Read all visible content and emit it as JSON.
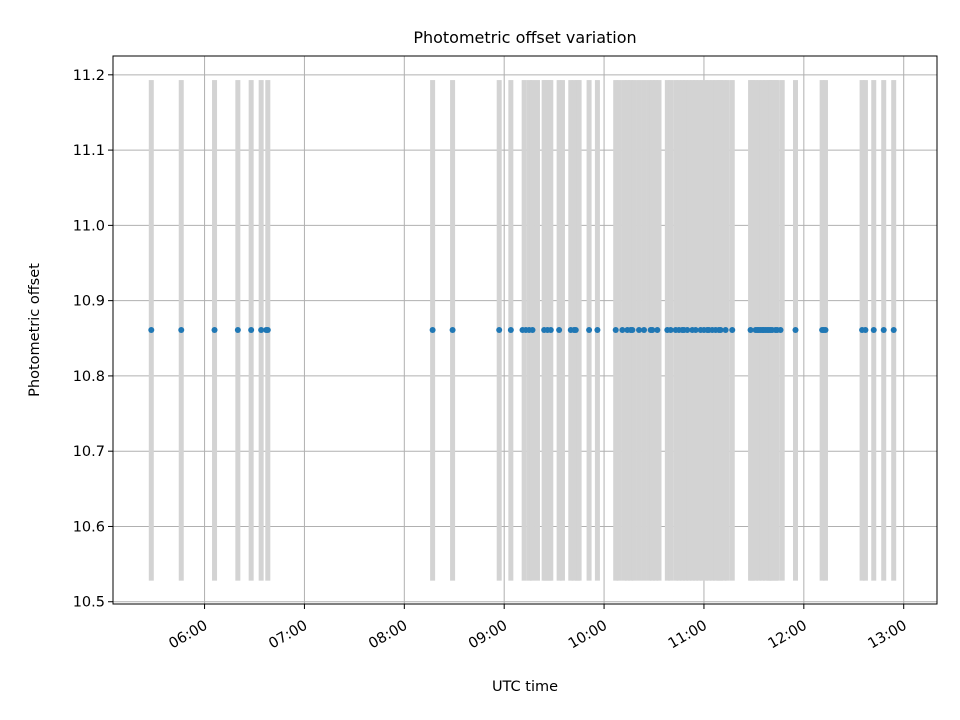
{
  "chart_data": {
    "type": "scatter",
    "title": "Photometric offset variation",
    "xlabel": "UTC time",
    "ylabel": "Photometric offset",
    "ylim": [
      10.497,
      11.225
    ],
    "xlim": [
      "05:05",
      "13:20"
    ],
    "y_ticks": [
      "10.5",
      "10.6",
      "10.7",
      "10.8",
      "10.9",
      "11.0",
      "11.1",
      "11.2"
    ],
    "x_ticks": [
      "06:00",
      "07:00",
      "08:00",
      "09:00",
      "10:00",
      "11:00",
      "12:00",
      "13:00"
    ],
    "grid": true,
    "legend": "none",
    "colors": {
      "points": "#1f77b4",
      "bars": "#d3d3d3",
      "grid": "#b0b0b0"
    },
    "range_bars": {
      "ymin": 10.528,
      "ymax": 11.193,
      "x": [
        "05:28",
        "05:46",
        "06:06",
        "06:20",
        "06:28",
        "06:34",
        "06:38",
        "08:17",
        "08:29",
        "08:57",
        "09:04",
        "09:12",
        "09:15",
        "09:17",
        "09:20",
        "09:24",
        "09:25",
        "09:27",
        "09:28",
        "09:33",
        "09:35",
        "09:40",
        "09:42",
        "09:44",
        "09:45",
        "09:51",
        "09:56",
        "10:07",
        "10:09",
        "10:12",
        "10:14",
        "10:16",
        "10:18",
        "10:21",
        "10:24",
        "10:27",
        "10:29",
        "10:31",
        "10:33",
        "10:38",
        "10:40",
        "10:43",
        "10:45",
        "10:47",
        "10:49",
        "10:51",
        "10:53",
        "10:55",
        "10:57",
        "10:59",
        "11:01",
        "11:03",
        "11:05",
        "11:07",
        "11:09",
        "11:10",
        "11:12",
        "11:14",
        "11:17",
        "11:28",
        "11:29",
        "11:31",
        "11:33",
        "11:35",
        "11:37",
        "11:39",
        "11:40",
        "11:41",
        "11:43",
        "11:44",
        "11:47",
        "11:55",
        "12:11",
        "12:13",
        "12:35",
        "12:37",
        "12:42",
        "12:48",
        "12:54"
      ]
    },
    "series": [
      {
        "y": 10.861,
        "x": [
          "05:28",
          "05:46",
          "06:06",
          "06:20",
          "06:28",
          "06:34",
          "06:37",
          "06:38",
          "08:17",
          "08:29",
          "08:57",
          "09:04",
          "09:11",
          "09:13",
          "09:15",
          "09:17",
          "09:24",
          "09:26",
          "09:28",
          "09:33",
          "09:40",
          "09:42",
          "09:43",
          "09:51",
          "09:56",
          "10:07",
          "10:11",
          "10:14",
          "10:16",
          "10:17",
          "10:21",
          "10:24",
          "10:28",
          "10:29",
          "10:32",
          "10:38",
          "10:40",
          "10:43",
          "10:45",
          "10:47",
          "10:48",
          "10:50",
          "10:53",
          "10:55",
          "10:58",
          "11:00",
          "11:02",
          "11:03",
          "11:05",
          "11:07",
          "11:09",
          "11:10",
          "11:13",
          "11:17",
          "11:28",
          "11:31",
          "11:32",
          "11:33",
          "11:34",
          "11:35",
          "11:36",
          "11:37",
          "11:38",
          "11:39",
          "11:40",
          "11:41",
          "11:43",
          "11:44",
          "11:46",
          "11:55",
          "12:11",
          "12:12",
          "12:13",
          "12:35",
          "12:37",
          "12:42",
          "12:48",
          "12:54"
        ]
      }
    ]
  }
}
